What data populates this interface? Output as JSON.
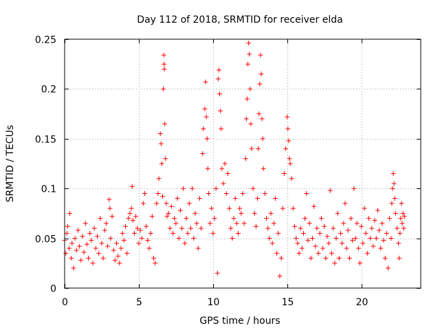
{
  "chart_data": {
    "type": "scatter",
    "title": "Day 112 of 2018, SRMTID for receiver elda",
    "xlabel": "GPS time / hours",
    "ylabel": "SRMTID / TECUs",
    "xlim": [
      0,
      24
    ],
    "ylim": [
      0,
      0.25
    ],
    "xticks": [
      0,
      5,
      10,
      15,
      20
    ],
    "xtick_labels": [
      "0",
      "5",
      "10",
      "15",
      "20"
    ],
    "yticks": [
      0,
      0.05,
      0.1,
      0.15,
      0.2,
      0.25
    ],
    "ytick_labels": [
      "0",
      "0.05",
      "0.1",
      "0.15",
      "0.2",
      "0.25"
    ],
    "grid": true,
    "marker": "+",
    "color": "#ff0000",
    "series": [
      {
        "name": "SRMTID",
        "points": [
          [
            0.0,
            0.048
          ],
          [
            0.08,
            0.035
          ],
          [
            0.15,
            0.055
          ],
          [
            0.2,
            0.062
          ],
          [
            0.3,
            0.04
          ],
          [
            0.35,
            0.075
          ],
          [
            0.45,
            0.03
          ],
          [
            0.5,
            0.045
          ],
          [
            0.6,
            0.02
          ],
          [
            0.7,
            0.05
          ],
          [
            0.8,
            0.038
          ],
          [
            0.9,
            0.058
          ],
          [
            1.0,
            0.042
          ],
          [
            1.1,
            0.028
          ],
          [
            1.2,
            0.052
          ],
          [
            1.3,
            0.036
          ],
          [
            1.4,
            0.065
          ],
          [
            1.5,
            0.044
          ],
          [
            1.6,
            0.03
          ],
          [
            1.7,
            0.055
          ],
          [
            1.8,
            0.048
          ],
          [
            1.9,
            0.025
          ],
          [
            2.0,
            0.06
          ],
          [
            2.1,
            0.04
          ],
          [
            2.2,
            0.052
          ],
          [
            2.3,
            0.035
          ],
          [
            2.4,
            0.07
          ],
          [
            2.5,
            0.045
          ],
          [
            2.6,
            0.03
          ],
          [
            2.7,
            0.058
          ],
          [
            2.8,
            0.065
          ],
          [
            2.9,
            0.042
          ],
          [
            3.0,
            0.089
          ],
          [
            3.05,
            0.08
          ],
          [
            3.1,
            0.05
          ],
          [
            3.2,
            0.072
          ],
          [
            3.3,
            0.038
          ],
          [
            3.4,
            0.028
          ],
          [
            3.5,
            0.045
          ],
          [
            3.6,
            0.032
          ],
          [
            3.7,
            0.025
          ],
          [
            3.8,
            0.04
          ],
          [
            3.9,
            0.055
          ],
          [
            4.0,
            0.048
          ],
          [
            4.1,
            0.062
          ],
          [
            4.2,
            0.035
          ],
          [
            4.3,
            0.07
          ],
          [
            4.4,
            0.075
          ],
          [
            4.5,
            0.08
          ],
          [
            4.55,
            0.102
          ],
          [
            4.6,
            0.068
          ],
          [
            4.7,
            0.055
          ],
          [
            4.8,
            0.072
          ],
          [
            4.9,
            0.06
          ],
          [
            5.0,
            0.045
          ],
          [
            5.1,
            0.058
          ],
          [
            5.2,
            0.05
          ],
          [
            5.3,
            0.085
          ],
          [
            5.4,
            0.095
          ],
          [
            5.5,
            0.062
          ],
          [
            5.6,
            0.048
          ],
          [
            5.7,
            0.04
          ],
          [
            5.8,
            0.055
          ],
          [
            5.9,
            0.072
          ],
          [
            6.0,
            0.03
          ],
          [
            6.1,
            0.025
          ],
          [
            6.2,
            0.085
          ],
          [
            6.3,
            0.095
          ],
          [
            6.35,
            0.11
          ],
          [
            6.45,
            0.155
          ],
          [
            6.5,
            0.145
          ],
          [
            6.55,
            0.125
          ],
          [
            6.6,
            0.092
          ],
          [
            6.65,
            0.2
          ],
          [
            6.68,
            0.234
          ],
          [
            6.7,
            0.225
          ],
          [
            6.72,
            0.22
          ],
          [
            6.75,
            0.165
          ],
          [
            6.8,
            0.13
          ],
          [
            6.85,
            0.085
          ],
          [
            6.9,
            0.072
          ],
          [
            7.0,
            0.075
          ],
          [
            7.1,
            0.06
          ],
          [
            7.2,
            0.082
          ],
          [
            7.3,
            0.055
          ],
          [
            7.4,
            0.07
          ],
          [
            7.5,
            0.065
          ],
          [
            7.6,
            0.09
          ],
          [
            7.7,
            0.05
          ],
          [
            7.8,
            0.078
          ],
          [
            7.9,
            0.06
          ],
          [
            8.0,
            0.1
          ],
          [
            8.1,
            0.045
          ],
          [
            8.2,
            0.07
          ],
          [
            8.3,
            0.055
          ],
          [
            8.4,
            0.085
          ],
          [
            8.5,
            0.06
          ],
          [
            8.6,
            0.1
          ],
          [
            8.7,
            0.05
          ],
          [
            8.8,
            0.075
          ],
          [
            8.9,
            0.065
          ],
          [
            9.0,
            0.04
          ],
          [
            9.1,
            0.09
          ],
          [
            9.2,
            0.06
          ],
          [
            9.3,
            0.135
          ],
          [
            9.35,
            0.16
          ],
          [
            9.45,
            0.18
          ],
          [
            9.5,
            0.207
          ],
          [
            9.55,
            0.172
          ],
          [
            9.6,
            0.15
          ],
          [
            9.65,
            0.12
          ],
          [
            9.7,
            0.095
          ],
          [
            9.8,
            0.065
          ],
          [
            9.9,
            0.08
          ],
          [
            10.0,
            0.055
          ],
          [
            10.1,
            0.07
          ],
          [
            10.2,
            0.1
          ],
          [
            10.3,
            0.015
          ],
          [
            10.35,
            0.21
          ],
          [
            10.4,
            0.219
          ],
          [
            10.45,
            0.195
          ],
          [
            10.5,
            0.178
          ],
          [
            10.55,
            0.16
          ],
          [
            10.6,
            0.12
          ],
          [
            10.7,
            0.105
          ],
          [
            10.8,
            0.125
          ],
          [
            10.9,
            0.095
          ],
          [
            11.0,
            0.115
          ],
          [
            11.1,
            0.08
          ],
          [
            11.2,
            0.06
          ],
          [
            11.3,
            0.05
          ],
          [
            11.4,
            0.07
          ],
          [
            11.5,
            0.09
          ],
          [
            11.6,
            0.065
          ],
          [
            11.7,
            0.055
          ],
          [
            11.8,
            0.08
          ],
          [
            11.9,
            0.075
          ],
          [
            12.0,
            0.095
          ],
          [
            12.1,
            0.065
          ],
          [
            12.2,
            0.13
          ],
          [
            12.25,
            0.17
          ],
          [
            12.3,
            0.19
          ],
          [
            12.35,
            0.225
          ],
          [
            12.4,
            0.246
          ],
          [
            12.45,
            0.235
          ],
          [
            12.5,
            0.2
          ],
          [
            12.55,
            0.165
          ],
          [
            12.6,
            0.14
          ],
          [
            12.7,
            0.1
          ],
          [
            12.8,
            0.075
          ],
          [
            12.9,
            0.062
          ],
          [
            13.0,
            0.09
          ],
          [
            13.05,
            0.14
          ],
          [
            13.1,
            0.175
          ],
          [
            13.15,
            0.205
          ],
          [
            13.2,
            0.234
          ],
          [
            13.25,
            0.215
          ],
          [
            13.3,
            0.17
          ],
          [
            13.35,
            0.15
          ],
          [
            13.4,
            0.12
          ],
          [
            13.5,
            0.095
          ],
          [
            13.6,
            0.07
          ],
          [
            13.7,
            0.06
          ],
          [
            13.8,
            0.05
          ],
          [
            13.9,
            0.075
          ],
          [
            14.0,
            0.045
          ],
          [
            14.1,
            0.065
          ],
          [
            14.2,
            0.09
          ],
          [
            14.3,
            0.035
          ],
          [
            14.4,
            0.055
          ],
          [
            14.5,
            0.012
          ],
          [
            14.6,
            0.03
          ],
          [
            14.7,
            0.08
          ],
          [
            14.8,
            0.115
          ],
          [
            14.9,
            0.14
          ],
          [
            15.0,
            0.172
          ],
          [
            15.05,
            0.16
          ],
          [
            15.1,
            0.148
          ],
          [
            15.15,
            0.13
          ],
          [
            15.2,
            0.125
          ],
          [
            15.3,
            0.11
          ],
          [
            15.4,
            0.08
          ],
          [
            15.5,
            0.062
          ],
          [
            15.6,
            0.05
          ],
          [
            15.7,
            0.045
          ],
          [
            15.8,
            0.035
          ],
          [
            15.9,
            0.06
          ],
          [
            16.0,
            0.04
          ],
          [
            16.1,
            0.055
          ],
          [
            16.2,
            0.07
          ],
          [
            16.3,
            0.095
          ],
          [
            16.4,
            0.048
          ],
          [
            16.5,
            0.065
          ],
          [
            16.6,
            0.03
          ],
          [
            16.7,
            0.05
          ],
          [
            16.8,
            0.082
          ],
          [
            16.9,
            0.042
          ],
          [
            17.0,
            0.06
          ],
          [
            17.1,
            0.035
          ],
          [
            17.2,
            0.055
          ],
          [
            17.3,
            0.07
          ],
          [
            17.4,
            0.04
          ],
          [
            17.5,
            0.062
          ],
          [
            17.6,
            0.03
          ],
          [
            17.7,
            0.052
          ],
          [
            17.8,
            0.045
          ],
          [
            17.9,
            0.098
          ],
          [
            18.0,
            0.035
          ],
          [
            18.1,
            0.06
          ],
          [
            18.2,
            0.025
          ],
          [
            18.3,
            0.05
          ],
          [
            18.4,
            0.075
          ],
          [
            18.5,
            0.03
          ],
          [
            18.6,
            0.055
          ],
          [
            18.7,
            0.045
          ],
          [
            18.8,
            0.065
          ],
          [
            18.9,
            0.085
          ],
          [
            19.0,
            0.04
          ],
          [
            19.1,
            0.058
          ],
          [
            19.2,
            0.03
          ],
          [
            19.3,
            0.07
          ],
          [
            19.4,
            0.048
          ],
          [
            19.5,
            0.1
          ],
          [
            19.6,
            0.05
          ],
          [
            19.7,
            0.065
          ],
          [
            19.8,
            0.04
          ],
          [
            19.9,
            0.025
          ],
          [
            20.0,
            0.062
          ],
          [
            20.1,
            0.045
          ],
          [
            20.2,
            0.08
          ],
          [
            20.3,
            0.055
          ],
          [
            20.4,
            0.035
          ],
          [
            20.5,
            0.07
          ],
          [
            20.6,
            0.05
          ],
          [
            20.7,
            0.06
          ],
          [
            20.8,
            0.042
          ],
          [
            20.9,
            0.068
          ],
          [
            21.0,
            0.05
          ],
          [
            21.1,
            0.078
          ],
          [
            21.2,
            0.058
          ],
          [
            21.3,
            0.04
          ],
          [
            21.4,
            0.065
          ],
          [
            21.5,
            0.048
          ],
          [
            21.6,
            0.03
          ],
          [
            21.7,
            0.055
          ],
          [
            21.8,
            0.02
          ],
          [
            21.9,
            0.07
          ],
          [
            22.0,
            0.05
          ],
          [
            22.05,
            0.085
          ],
          [
            22.1,
            0.1
          ],
          [
            22.15,
            0.115
          ],
          [
            22.2,
            0.105
          ],
          [
            22.25,
            0.09
          ],
          [
            22.3,
            0.075
          ],
          [
            22.4,
            0.06
          ],
          [
            22.5,
            0.045
          ],
          [
            22.55,
            0.03
          ],
          [
            22.6,
            0.055
          ],
          [
            22.65,
            0.07
          ],
          [
            22.7,
            0.085
          ],
          [
            22.75,
            0.065
          ],
          [
            22.8,
            0.075
          ],
          [
            22.85,
            0.06
          ],
          [
            22.9,
            0.072
          ]
        ]
      }
    ]
  }
}
